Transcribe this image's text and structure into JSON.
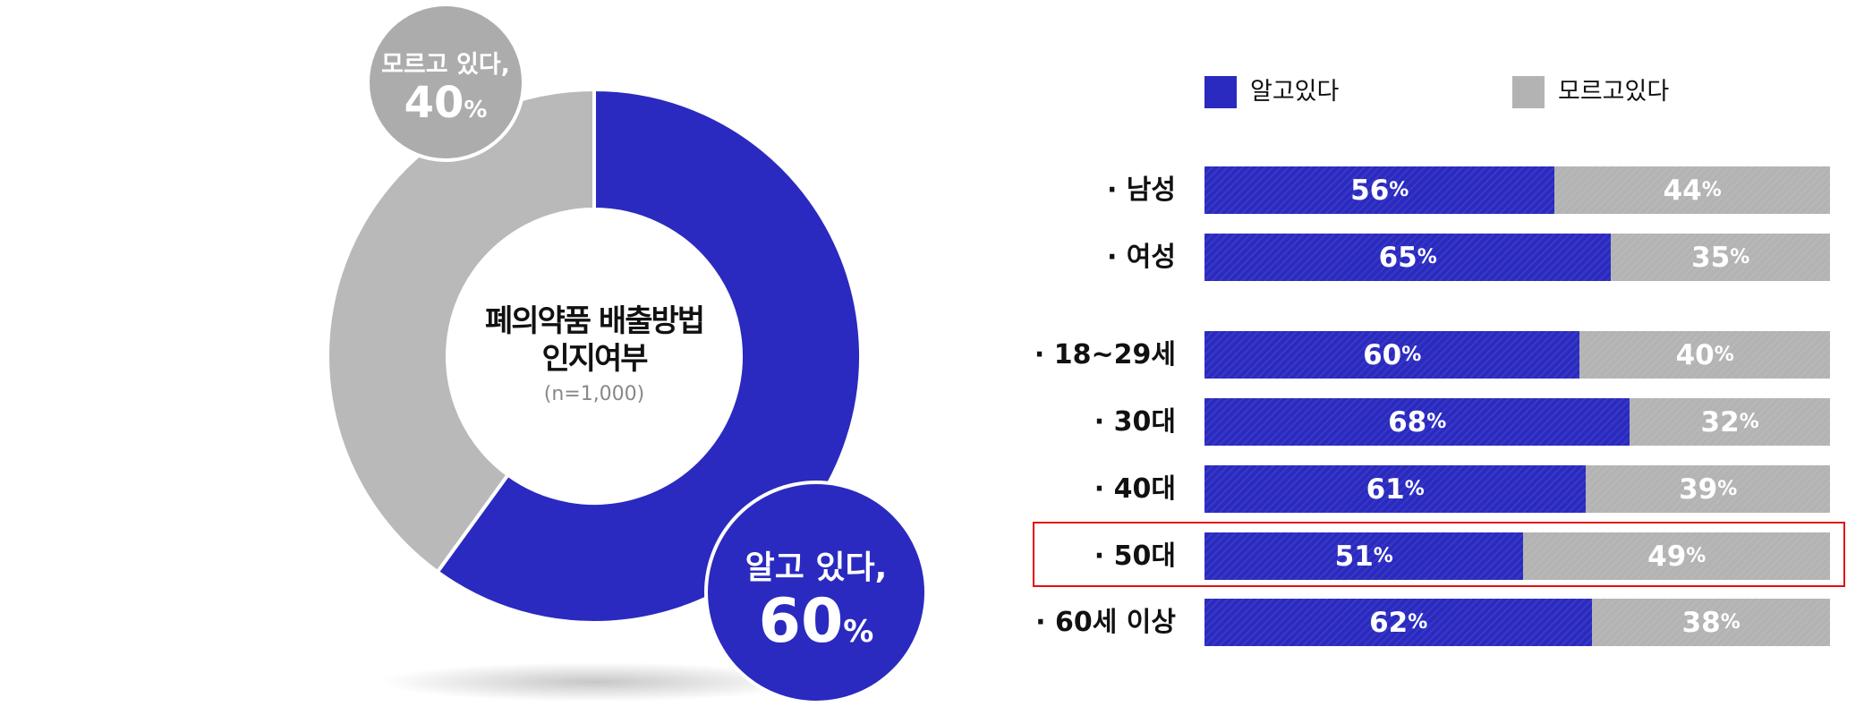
{
  "colors": {
    "known": "#2a2ac0",
    "unknown_donut": "#b9b9b9",
    "unknown_bar": "#b3b3b3",
    "highlight": "#e01010"
  },
  "chart_data": [
    {
      "type": "pie",
      "donut": true,
      "title": "폐의약품 배출방법 인지여부",
      "title_line1": "폐의약품 배출방법",
      "title_line2": "인지여부",
      "subtitle": "(n=1,000)",
      "slices": [
        {
          "label": "알고 있다,",
          "value": 60,
          "display": "60",
          "unit": "%"
        },
        {
          "label": "모르고 있다,",
          "value": 40,
          "display": "40",
          "unit": "%"
        }
      ]
    },
    {
      "type": "bar",
      "orientation": "horizontal",
      "stacked": true,
      "legend": [
        "알고있다",
        "모르고있다"
      ],
      "legend_position": "top",
      "unit": "%",
      "categories": [
        "· 남성",
        "· 여성",
        "· 18~29세",
        "· 30대",
        "· 40대",
        "· 50대",
        "· 60세 이상"
      ],
      "highlighted_category": "· 50대",
      "series": [
        {
          "name": "알고있다",
          "values": [
            56,
            65,
            60,
            68,
            61,
            51,
            62
          ]
        },
        {
          "name": "모르고있다",
          "values": [
            44,
            35,
            40,
            32,
            39,
            49,
            38
          ]
        }
      ]
    }
  ]
}
